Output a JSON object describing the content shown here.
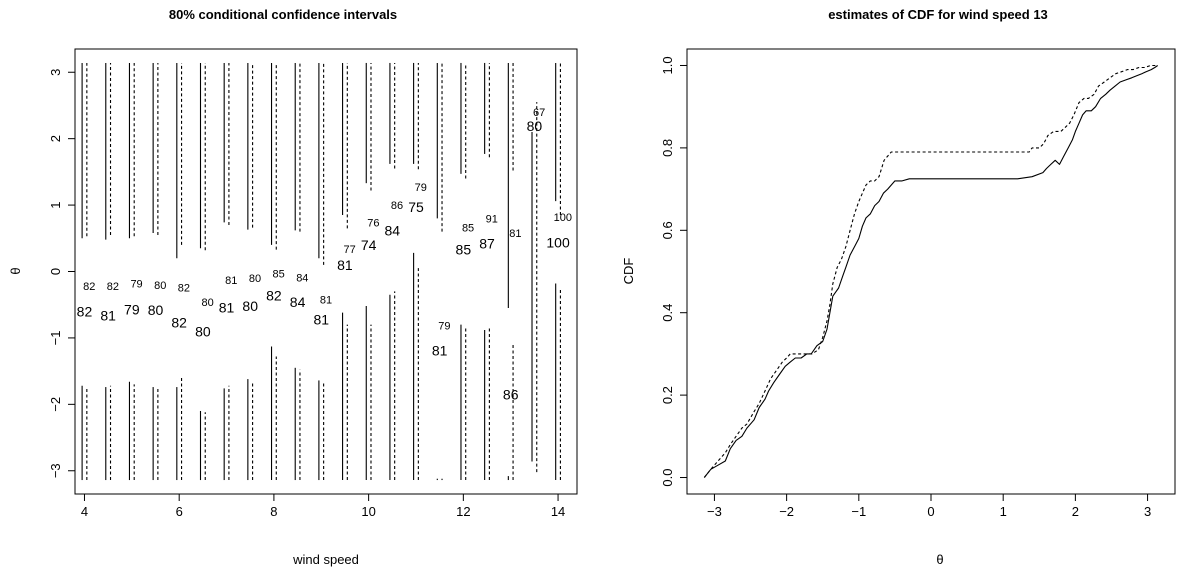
{
  "chart_data": [
    {
      "type": "interval",
      "title": "80% conditional confidence intervals",
      "xlabel": "wind speed",
      "ylabel": "θ",
      "xlim": [
        3.8,
        14.4
      ],
      "ylim": [
        -3.35,
        3.35
      ],
      "xticks": [
        4,
        6,
        8,
        10,
        12,
        14
      ],
      "yticks": [
        -3,
        -2,
        -1,
        0,
        1,
        2,
        3
      ],
      "series": [
        {
          "line": "solid",
          "offset": -0.05
        },
        {
          "line": "dashed",
          "offset": 0.05
        }
      ],
      "intervals": [
        {
          "x": 4.0,
          "solid": [
            [
              -3.14,
              -1.72
            ],
            [
              0.5,
              3.14
            ]
          ],
          "dashed": [
            [
              -3.14,
              -1.76
            ],
            [
              0.53,
              3.14
            ]
          ]
        },
        {
          "x": 4.5,
          "solid": [
            [
              -3.14,
              -1.74
            ],
            [
              0.48,
              3.14
            ]
          ],
          "dashed": [
            [
              -3.14,
              -1.72
            ],
            [
              0.55,
              3.14
            ]
          ]
        },
        {
          "x": 5.0,
          "solid": [
            [
              -3.14,
              -1.66
            ],
            [
              0.5,
              3.14
            ]
          ],
          "dashed": [
            [
              -3.14,
              -1.7
            ],
            [
              0.53,
              3.14
            ]
          ]
        },
        {
          "x": 5.5,
          "solid": [
            [
              -3.14,
              -1.74
            ],
            [
              0.58,
              3.14
            ]
          ],
          "dashed": [
            [
              -3.14,
              -1.76
            ],
            [
              0.55,
              3.14
            ]
          ]
        },
        {
          "x": 6.0,
          "solid": [
            [
              -3.14,
              -1.74
            ],
            [
              0.2,
              3.14
            ]
          ],
          "dashed": [
            [
              -3.14,
              -1.6
            ],
            [
              0.4,
              3.14
            ]
          ]
        },
        {
          "x": 6.5,
          "solid": [
            [
              -3.14,
              -2.1
            ],
            [
              0.35,
              3.14
            ]
          ],
          "dashed": [
            [
              -3.14,
              -2.12
            ],
            [
              0.32,
              3.14
            ]
          ]
        },
        {
          "x": 7.0,
          "solid": [
            [
              -3.14,
              -1.76
            ],
            [
              0.74,
              3.14
            ]
          ],
          "dashed": [
            [
              -3.14,
              -1.72
            ],
            [
              0.7,
              3.14
            ]
          ]
        },
        {
          "x": 7.5,
          "solid": [
            [
              -3.14,
              -1.62
            ],
            [
              0.63,
              3.14
            ]
          ],
          "dashed": [
            [
              -3.14,
              -1.66
            ],
            [
              0.66,
              3.14
            ]
          ]
        },
        {
          "x": 8.0,
          "solid": [
            [
              -3.14,
              -1.13
            ],
            [
              0.4,
              3.14
            ]
          ],
          "dashed": [
            [
              -3.14,
              -1.28
            ],
            [
              0.33,
              3.14
            ]
          ]
        },
        {
          "x": 8.5,
          "solid": [
            [
              -3.14,
              -1.45
            ],
            [
              0.62,
              3.14
            ]
          ],
          "dashed": [
            [
              -3.14,
              -1.48
            ],
            [
              0.6,
              3.14
            ]
          ]
        },
        {
          "x": 9.0,
          "solid": [
            [
              -3.14,
              -1.64
            ],
            [
              0.2,
              3.14
            ]
          ],
          "dashed": [
            [
              -3.14,
              -1.68
            ],
            [
              0.1,
              3.14
            ]
          ]
        },
        {
          "x": 9.5,
          "solid": [
            [
              -3.14,
              -0.62
            ],
            [
              0.85,
              3.14
            ]
          ],
          "dashed": [
            [
              -3.14,
              -0.8
            ],
            [
              0.65,
              3.14
            ]
          ]
        },
        {
          "x": 10.0,
          "solid": [
            [
              -3.14,
              -0.52
            ],
            [
              1.33,
              3.14
            ]
          ],
          "dashed": [
            [
              -3.14,
              -0.8
            ],
            [
              1.22,
              3.14
            ]
          ]
        },
        {
          "x": 10.5,
          "solid": [
            [
              -3.14,
              -0.35
            ],
            [
              1.62,
              3.14
            ]
          ],
          "dashed": [
            [
              -3.14,
              -0.3
            ],
            [
              1.55,
              3.14
            ]
          ]
        },
        {
          "x": 11.0,
          "solid": [
            [
              -3.14,
              0.28
            ],
            [
              1.62,
              3.14
            ]
          ],
          "dashed": [
            [
              -3.14,
              0.05
            ],
            [
              1.54,
              3.14
            ]
          ]
        },
        {
          "x": 11.5,
          "solid": [
            [
              -3.14,
              -3.12
            ],
            [
              0.8,
              3.14
            ]
          ],
          "dashed": [
            [
              -3.14,
              -3.12
            ],
            [
              0.6,
              3.14
            ]
          ]
        },
        {
          "x": 12.0,
          "solid": [
            [
              -3.14,
              -0.8
            ],
            [
              1.47,
              3.14
            ]
          ],
          "dashed": [
            [
              -3.14,
              -0.84
            ],
            [
              1.4,
              3.14
            ]
          ]
        },
        {
          "x": 12.5,
          "solid": [
            [
              -3.14,
              -0.88
            ],
            [
              1.77,
              3.14
            ]
          ],
          "dashed": [
            [
              -3.14,
              -0.85
            ],
            [
              1.72,
              3.14
            ]
          ]
        },
        {
          "x": 13.0,
          "solid": [
            [
              -3.14,
              -3.08
            ],
            [
              -0.55,
              3.14
            ]
          ],
          "dashed": [
            [
              -3.14,
              -1.1
            ],
            [
              1.52,
              3.14
            ]
          ]
        },
        {
          "x": 13.5,
          "solid": [
            [
              -2.86,
              2.1
            ]
          ],
          "dashed": [
            [
              -3.02,
              2.55
            ]
          ]
        },
        {
          "x": 14.0,
          "solid": [
            [
              -3.14,
              -0.18
            ],
            [
              1.06,
              3.14
            ]
          ],
          "dashed": [
            [
              -3.14,
              -0.26
            ],
            [
              0.85,
              3.14
            ]
          ]
        }
      ],
      "labels_small": [
        {
          "x": 4.1,
          "y": -0.22,
          "text": "82"
        },
        {
          "x": 4.6,
          "y": -0.22,
          "text": "82"
        },
        {
          "x": 5.1,
          "y": -0.18,
          "text": "79"
        },
        {
          "x": 5.6,
          "y": -0.2,
          "text": "80"
        },
        {
          "x": 6.1,
          "y": -0.24,
          "text": "82"
        },
        {
          "x": 6.6,
          "y": -0.46,
          "text": "80"
        },
        {
          "x": 7.1,
          "y": -0.13,
          "text": "81"
        },
        {
          "x": 7.6,
          "y": -0.1,
          "text": "80"
        },
        {
          "x": 8.1,
          "y": -0.03,
          "text": "85"
        },
        {
          "x": 8.6,
          "y": -0.09,
          "text": "84"
        },
        {
          "x": 9.1,
          "y": -0.42,
          "text": "81"
        },
        {
          "x": 9.6,
          "y": 0.34,
          "text": "77"
        },
        {
          "x": 10.1,
          "y": 0.74,
          "text": "76"
        },
        {
          "x": 10.6,
          "y": 1.0,
          "text": "86"
        },
        {
          "x": 11.1,
          "y": 1.27,
          "text": "79"
        },
        {
          "x": 11.6,
          "y": -0.81,
          "text": "79"
        },
        {
          "x": 12.1,
          "y": 0.66,
          "text": "85"
        },
        {
          "x": 12.6,
          "y": 0.8,
          "text": "91"
        },
        {
          "x": 13.1,
          "y": 0.58,
          "text": "81"
        },
        {
          "x": 13.6,
          "y": 2.4,
          "text": "67"
        },
        {
          "x": 14.1,
          "y": 0.82,
          "text": "100"
        }
      ],
      "labels_large": [
        {
          "x": 4.0,
          "y": -0.6,
          "text": "82"
        },
        {
          "x": 4.5,
          "y": -0.66,
          "text": "81"
        },
        {
          "x": 5.0,
          "y": -0.57,
          "text": "79"
        },
        {
          "x": 5.5,
          "y": -0.58,
          "text": "80"
        },
        {
          "x": 6.0,
          "y": -0.77,
          "text": "82"
        },
        {
          "x": 6.5,
          "y": -0.9,
          "text": "80"
        },
        {
          "x": 7.0,
          "y": -0.54,
          "text": "81"
        },
        {
          "x": 7.5,
          "y": -0.52,
          "text": "80"
        },
        {
          "x": 8.0,
          "y": -0.36,
          "text": "82"
        },
        {
          "x": 8.5,
          "y": -0.46,
          "text": "84"
        },
        {
          "x": 9.0,
          "y": -0.72,
          "text": "81"
        },
        {
          "x": 9.5,
          "y": 0.1,
          "text": "81"
        },
        {
          "x": 10.0,
          "y": 0.4,
          "text": "74"
        },
        {
          "x": 10.5,
          "y": 0.62,
          "text": "84"
        },
        {
          "x": 11.0,
          "y": 0.97,
          "text": "75"
        },
        {
          "x": 11.5,
          "y": -1.19,
          "text": "81"
        },
        {
          "x": 12.0,
          "y": 0.33,
          "text": "85"
        },
        {
          "x": 12.5,
          "y": 0.42,
          "text": "87"
        },
        {
          "x": 13.0,
          "y": -1.85,
          "text": "86"
        },
        {
          "x": 13.5,
          "y": 2.19,
          "text": "80"
        },
        {
          "x": 14.0,
          "y": 0.44,
          "text": "100"
        }
      ]
    },
    {
      "type": "line",
      "title": "estimates of CDF for wind speed 13",
      "xlabel": "θ",
      "ylabel": "CDF",
      "xlim": [
        -3.38,
        3.38
      ],
      "ylim": [
        -0.04,
        1.04
      ],
      "xticks": [
        -3,
        -2,
        -1,
        0,
        1,
        2,
        3
      ],
      "yticks": [
        0.0,
        0.2,
        0.4,
        0.6,
        0.8,
        1.0
      ],
      "xtick_labels": [
        "−3",
        "−2",
        "−1",
        "0",
        "1",
        "2",
        "3"
      ],
      "ytick_labels": [
        "0.0",
        "0.2",
        "0.4",
        "0.6",
        "0.8",
        "1.0"
      ],
      "series": [
        {
          "line": "solid",
          "x": [
            -3.14,
            -3.05,
            -2.95,
            -2.85,
            -2.78,
            -2.7,
            -2.62,
            -2.55,
            -2.45,
            -2.38,
            -2.3,
            -2.25,
            -2.18,
            -2.1,
            -2.02,
            -1.95,
            -1.88,
            -1.8,
            -1.72,
            -1.66,
            -1.58,
            -1.5,
            -1.44,
            -1.4,
            -1.36,
            -1.32,
            -1.28,
            -1.22,
            -1.18,
            -1.12,
            -1.06,
            -1.0,
            -0.95,
            -0.9,
            -0.84,
            -0.78,
            -0.72,
            -0.66,
            -0.6,
            -0.55,
            -0.5,
            -0.4,
            -0.3,
            -0.2,
            0.0,
            0.4,
            0.8,
            1.2,
            1.4,
            1.55,
            1.6,
            1.66,
            1.72,
            1.78,
            1.84,
            1.9,
            1.96,
            2.0,
            2.05,
            2.1,
            2.15,
            2.22,
            2.28,
            2.35,
            2.42,
            2.48,
            2.55,
            2.62,
            2.7,
            2.78,
            2.85,
            2.92,
            2.98,
            3.05,
            3.1,
            3.14
          ],
          "y": [
            0.0,
            0.02,
            0.03,
            0.04,
            0.07,
            0.09,
            0.1,
            0.12,
            0.14,
            0.17,
            0.19,
            0.21,
            0.23,
            0.25,
            0.27,
            0.28,
            0.29,
            0.29,
            0.3,
            0.3,
            0.32,
            0.33,
            0.36,
            0.4,
            0.44,
            0.45,
            0.46,
            0.49,
            0.51,
            0.54,
            0.56,
            0.58,
            0.61,
            0.63,
            0.64,
            0.66,
            0.67,
            0.69,
            0.7,
            0.71,
            0.72,
            0.72,
            0.725,
            0.725,
            0.725,
            0.725,
            0.725,
            0.725,
            0.73,
            0.74,
            0.75,
            0.76,
            0.77,
            0.76,
            0.78,
            0.8,
            0.82,
            0.84,
            0.86,
            0.88,
            0.89,
            0.89,
            0.9,
            0.92,
            0.93,
            0.94,
            0.95,
            0.96,
            0.965,
            0.97,
            0.975,
            0.98,
            0.985,
            0.99,
            0.995,
            1.0
          ]
        },
        {
          "line": "dashed",
          "x": [
            -3.14,
            -3.05,
            -2.95,
            -2.85,
            -2.78,
            -2.7,
            -2.62,
            -2.55,
            -2.45,
            -2.38,
            -2.3,
            -2.22,
            -2.14,
            -2.06,
            -2.0,
            -1.95,
            -1.8,
            -1.65,
            -1.56,
            -1.5,
            -1.44,
            -1.4,
            -1.36,
            -1.3,
            -1.24,
            -1.18,
            -1.12,
            -1.06,
            -1.0,
            -0.95,
            -0.9,
            -0.84,
            -0.78,
            -0.72,
            -0.65,
            -0.6,
            -0.55,
            -0.5,
            -0.3,
            0.0,
            0.4,
            0.8,
            1.2,
            1.36,
            1.4,
            1.5,
            1.56,
            1.62,
            1.7,
            1.8,
            1.86,
            1.92,
            1.98,
            2.05,
            2.12,
            2.18,
            2.26,
            2.32,
            2.4,
            2.48,
            2.56,
            2.64,
            2.72,
            2.8,
            2.88,
            2.96,
            3.04,
            3.1,
            3.14
          ],
          "y": [
            0.0,
            0.02,
            0.04,
            0.06,
            0.08,
            0.1,
            0.12,
            0.13,
            0.16,
            0.18,
            0.21,
            0.24,
            0.26,
            0.28,
            0.29,
            0.3,
            0.3,
            0.3,
            0.31,
            0.34,
            0.38,
            0.42,
            0.47,
            0.51,
            0.53,
            0.56,
            0.6,
            0.64,
            0.67,
            0.69,
            0.71,
            0.72,
            0.72,
            0.73,
            0.77,
            0.78,
            0.79,
            0.79,
            0.79,
            0.79,
            0.79,
            0.79,
            0.79,
            0.79,
            0.8,
            0.8,
            0.81,
            0.83,
            0.84,
            0.84,
            0.85,
            0.86,
            0.88,
            0.91,
            0.92,
            0.92,
            0.93,
            0.95,
            0.96,
            0.97,
            0.98,
            0.985,
            0.99,
            0.99,
            0.995,
            0.995,
            1.0,
            1.0,
            1.0
          ]
        }
      ]
    }
  ]
}
